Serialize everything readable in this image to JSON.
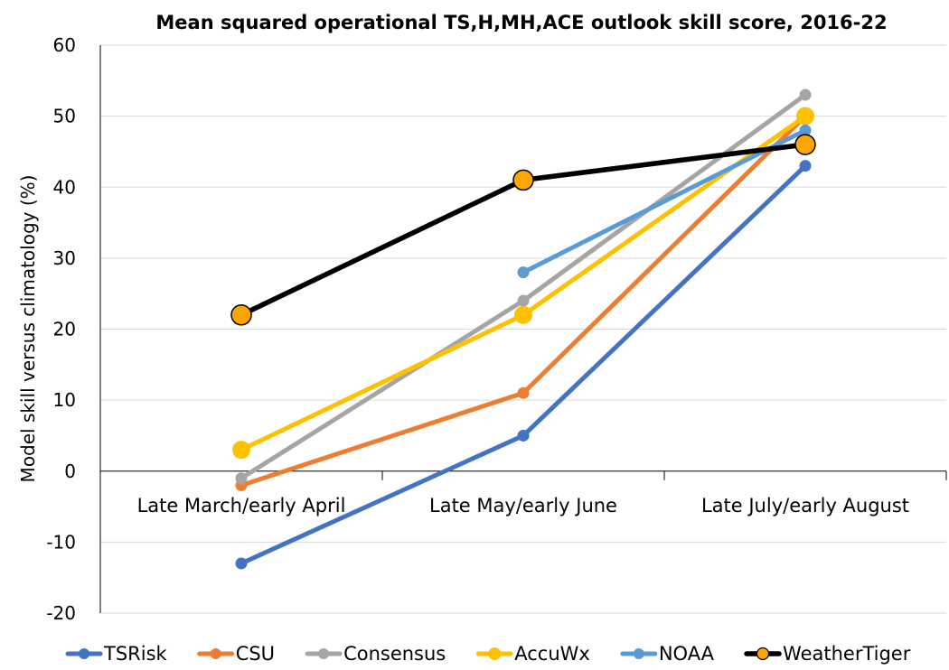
{
  "chart_data": {
    "type": "line",
    "title": "Mean squared operational TS,H,MH,ACE outlook skill score, 2016-22",
    "ylabel": "Model skill versus climatology (%)",
    "xlabel": "",
    "categories": [
      "Late March/early April",
      "Late May/early June",
      "Late July/early August"
    ],
    "ylim": [
      -20,
      60
    ],
    "yticks": [
      -20,
      -10,
      0,
      10,
      20,
      30,
      40,
      50,
      60
    ],
    "grid": true,
    "legend_position": "bottom",
    "series": [
      {
        "name": "TSRisk",
        "color": "#4472C4",
        "marker": "small",
        "values": [
          -13,
          5,
          43
        ]
      },
      {
        "name": "CSU",
        "color": "#ED7D31",
        "marker": "small",
        "values": [
          -2,
          11,
          50
        ]
      },
      {
        "name": "Consensus",
        "color": "#A5A5A5",
        "marker": "small",
        "values": [
          -1,
          24,
          53
        ]
      },
      {
        "name": "AccuWx",
        "color": "#FFC000",
        "marker": "large",
        "values": [
          3,
          22,
          50
        ]
      },
      {
        "name": "NOAA",
        "color": "#5B9BD5",
        "marker": "small",
        "values": [
          null,
          28,
          48
        ]
      },
      {
        "name": "WeatherTiger",
        "color": "#000000",
        "marker": "large-orange",
        "marker_fill": "#FFA500",
        "values": [
          22,
          41,
          46
        ]
      }
    ]
  }
}
